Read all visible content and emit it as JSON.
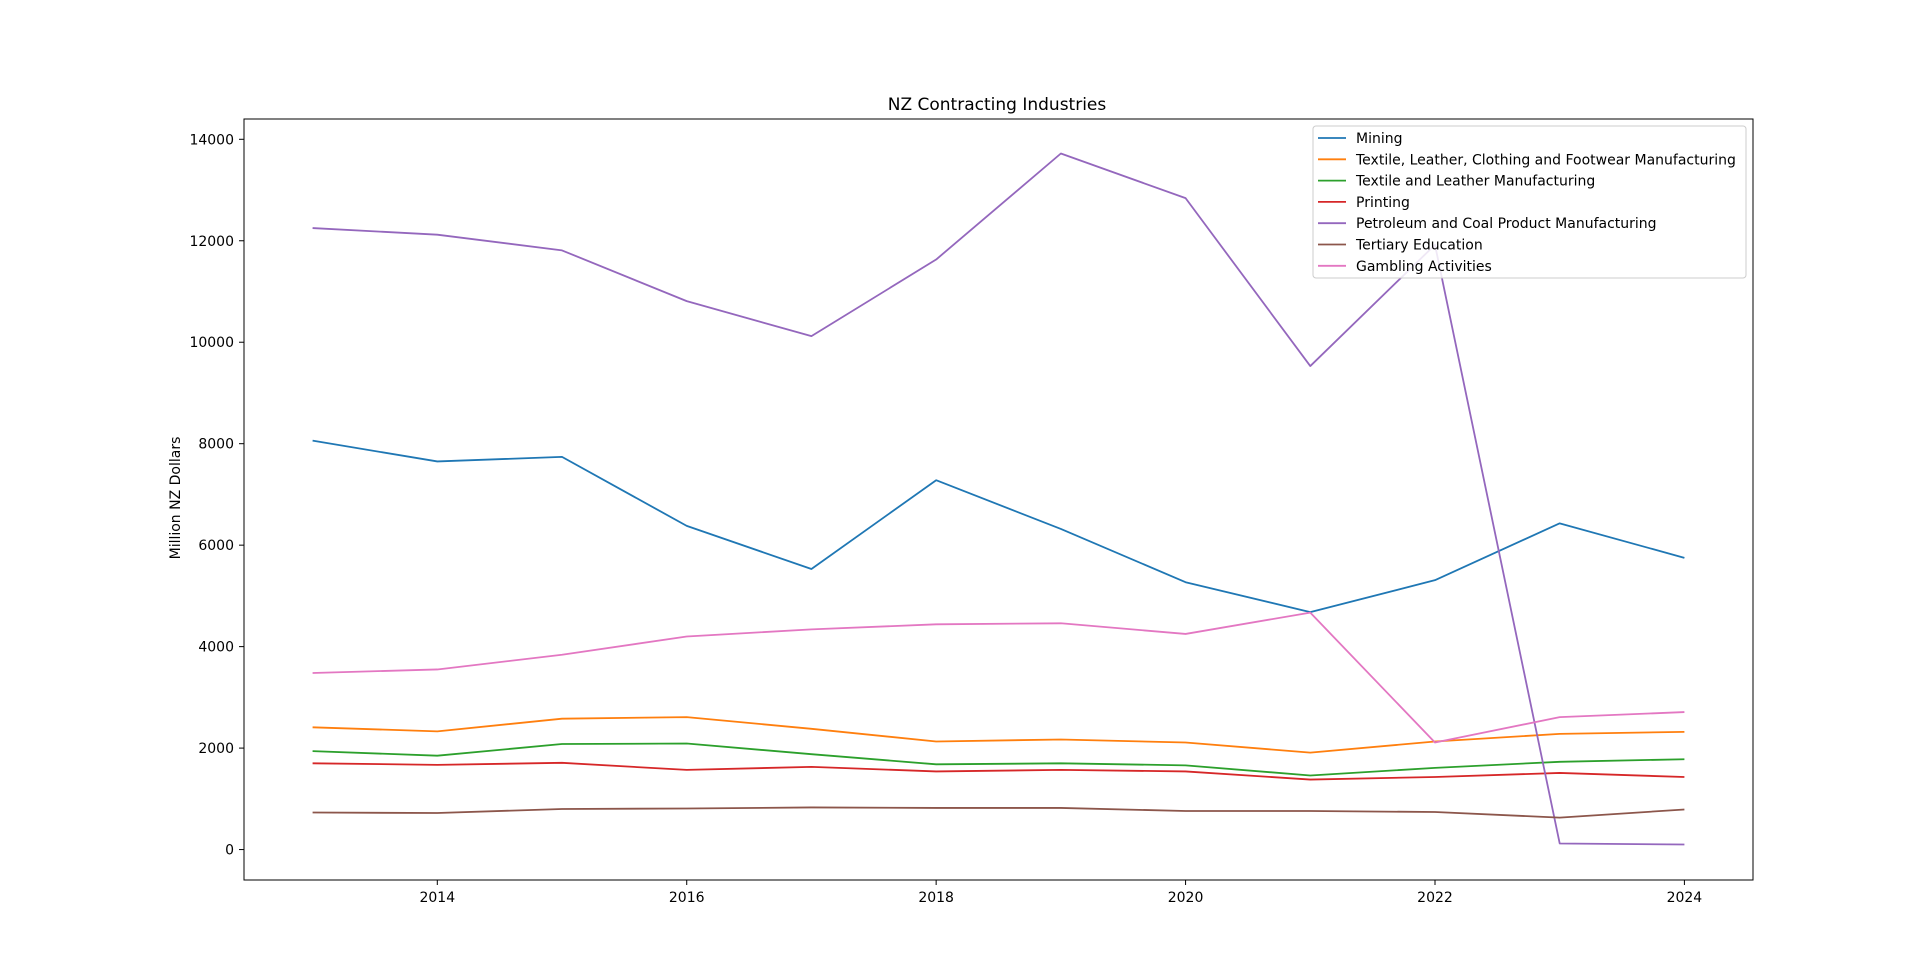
{
  "chart_data": {
    "type": "line",
    "title": "NZ Contracting Industries",
    "xlabel": "",
    "ylabel": "Million NZ Dollars",
    "x": [
      2013,
      2014,
      2015,
      2016,
      2017,
      2018,
      2019,
      2020,
      2021,
      2022,
      2023,
      2024
    ],
    "xlim": [
      2012.45,
      2024.55
    ],
    "ylim": [
      -600,
      14400
    ],
    "xticks": [
      2014,
      2016,
      2018,
      2020,
      2022,
      2024
    ],
    "yticks": [
      0,
      2000,
      4000,
      6000,
      8000,
      10000,
      12000,
      14000
    ],
    "grid": false,
    "legend_position": "top-right",
    "series": [
      {
        "name": "Mining",
        "color": "#1f77b4",
        "values": [
          8060,
          7650,
          7740,
          6380,
          5530,
          7280,
          6320,
          5270,
          4680,
          5310,
          6430,
          5750
        ]
      },
      {
        "name": "Textile, Leather, Clothing and Footwear Manufacturing",
        "color": "#ff7f0e",
        "values": [
          2410,
          2330,
          2580,
          2610,
          2380,
          2130,
          2170,
          2110,
          1910,
          2130,
          2280,
          2320
        ]
      },
      {
        "name": "Textile and Leather Manufacturing",
        "color": "#2ca02c",
        "values": [
          1940,
          1850,
          2080,
          2090,
          1880,
          1680,
          1700,
          1660,
          1460,
          1610,
          1730,
          1780
        ]
      },
      {
        "name": "Printing",
        "color": "#d62728",
        "values": [
          1700,
          1670,
          1710,
          1570,
          1630,
          1540,
          1570,
          1540,
          1380,
          1430,
          1510,
          1430
        ]
      },
      {
        "name": "Petroleum and Coal Product Manufacturing",
        "color": "#9467bd",
        "values": [
          12250,
          12120,
          11810,
          10810,
          10120,
          11630,
          13720,
          12840,
          9530,
          11920,
          120,
          100
        ]
      },
      {
        "name": "Tertiary Education",
        "color": "#8c564b",
        "values": [
          730,
          720,
          800,
          810,
          830,
          820,
          820,
          760,
          760,
          740,
          630,
          790
        ]
      },
      {
        "name": "Gambling Activities",
        "color": "#e377c2",
        "values": [
          3480,
          3550,
          3840,
          4200,
          4340,
          4440,
          4460,
          4250,
          4670,
          2110,
          2610,
          2710
        ]
      }
    ]
  }
}
